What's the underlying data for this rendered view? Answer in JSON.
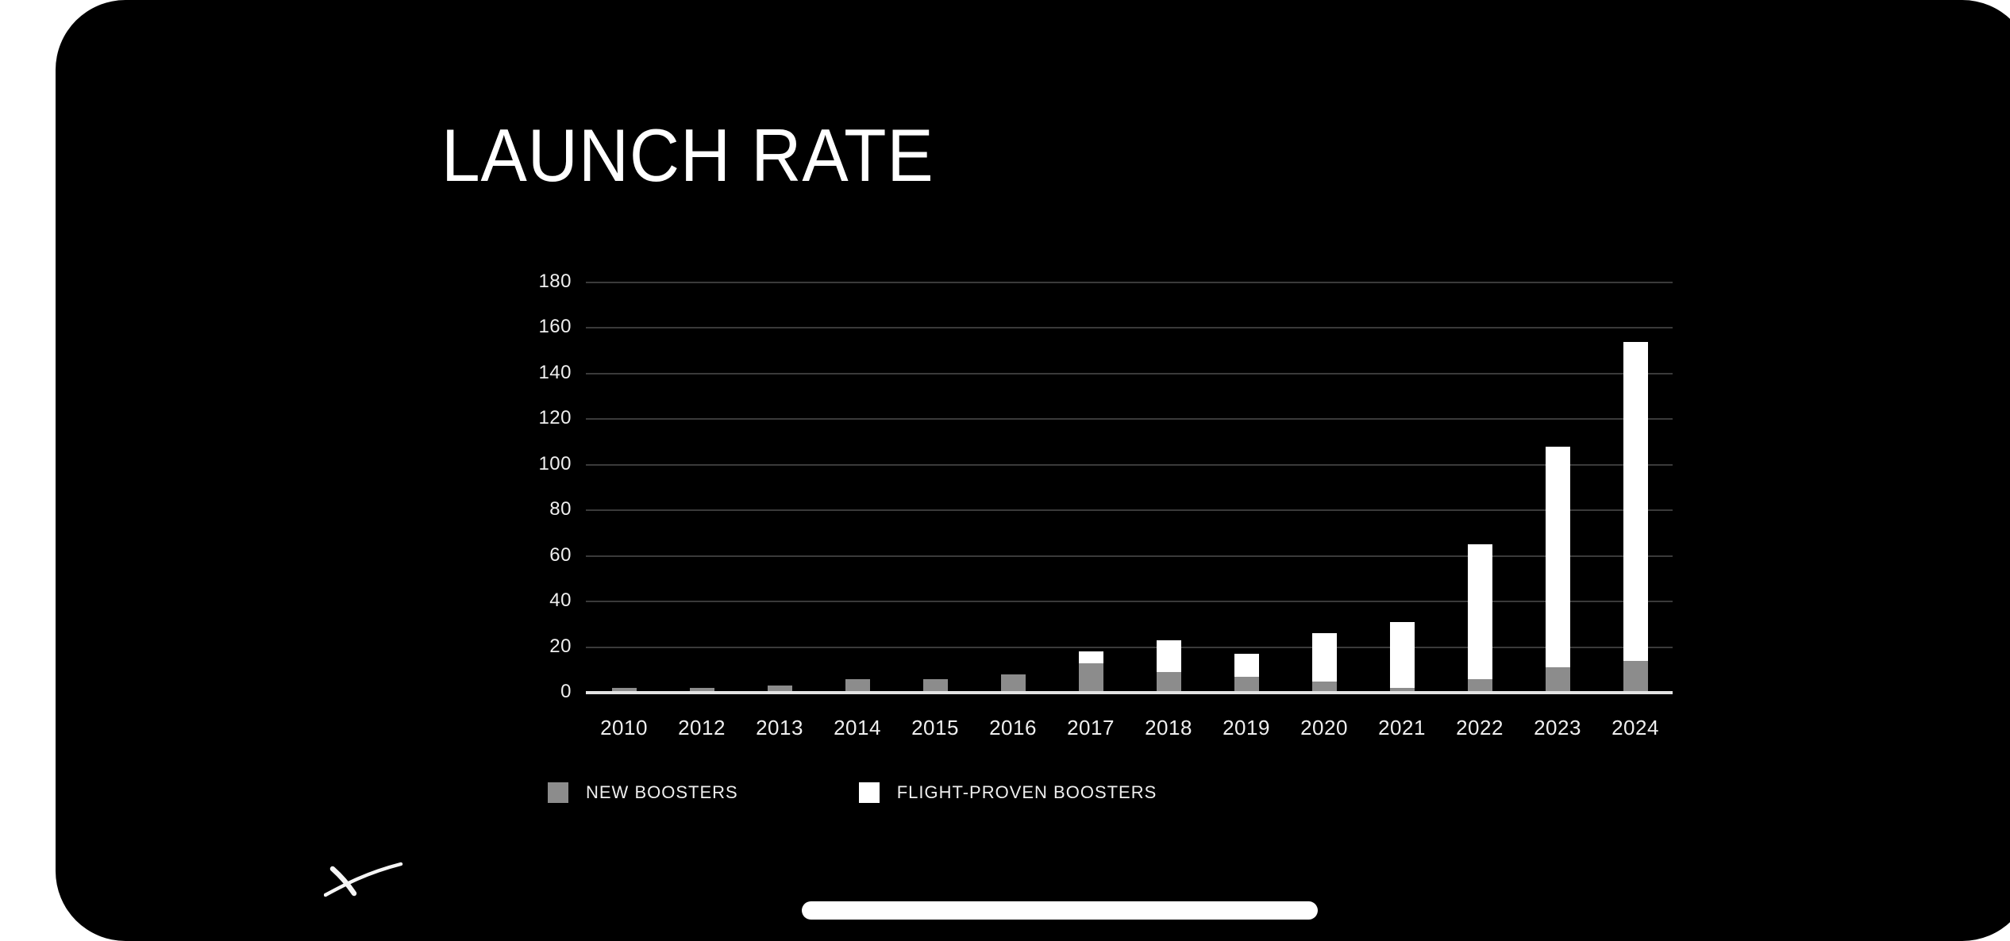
{
  "device": {
    "screen_background": "#000000",
    "surround_background": "#ffffff",
    "home_indicator": true
  },
  "slide": {
    "title": "LAUNCH RATE",
    "logo": "spacex-x-swoosh"
  },
  "colors": {
    "bar_new": "#8c8c8c",
    "bar_proven": "#ffffff",
    "gridline": "#3a3a3a",
    "axis_line": "#e3e3e3",
    "text": "#efefef"
  },
  "chart_data": {
    "type": "bar",
    "stacked": true,
    "title": "LAUNCH RATE",
    "categories": [
      "2010",
      "2012",
      "2013",
      "2014",
      "2015",
      "2016",
      "2017",
      "2018",
      "2019",
      "2020",
      "2021",
      "2022",
      "2023",
      "2024"
    ],
    "series": [
      {
        "name": "NEW BOOSTERS",
        "color": "#8c8c8c",
        "values": [
          2,
          2,
          3,
          6,
          6,
          8,
          13,
          9,
          7,
          5,
          2,
          6,
          11,
          14
        ]
      },
      {
        "name": "FLIGHT-PROVEN BOOSTERS",
        "color": "#ffffff",
        "values": [
          0,
          0,
          0,
          0,
          0,
          0,
          5,
          14,
          10,
          21,
          29,
          59,
          97,
          140
        ]
      }
    ],
    "totals": [
      2,
      2,
      3,
      6,
      6,
      8,
      18,
      23,
      17,
      26,
      31,
      65,
      108,
      154
    ],
    "xlabel": "",
    "ylabel": "",
    "ylim": [
      0,
      180
    ],
    "yticks": [
      0,
      20,
      40,
      60,
      80,
      100,
      120,
      140,
      160,
      180
    ],
    "grid": true,
    "legend_position": "bottom-left"
  }
}
